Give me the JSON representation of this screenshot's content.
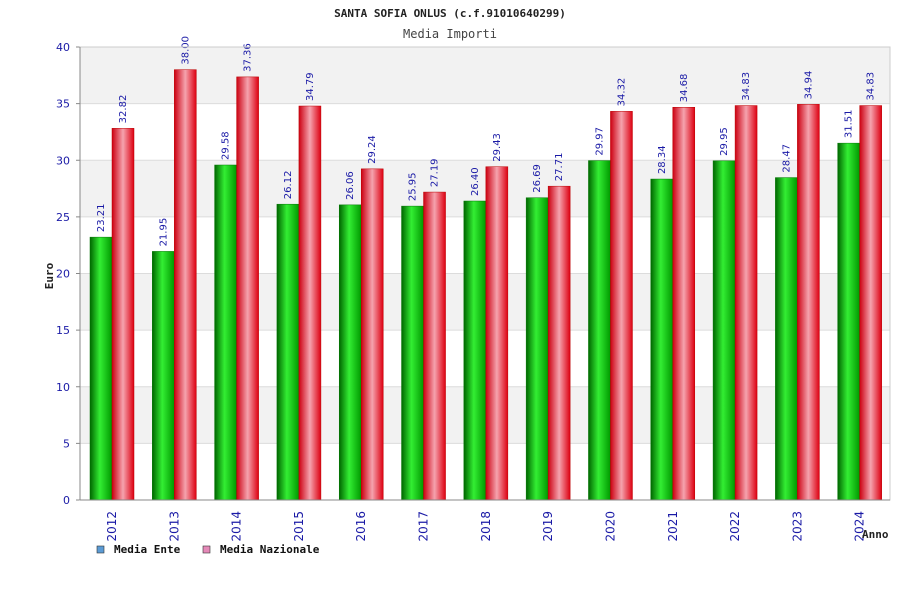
{
  "chart_data": {
    "type": "bar",
    "title": "SANTA SOFIA ONLUS (c.f.91010640299)",
    "subtitle": "Media Importi",
    "xlabel": "Anno",
    "ylabel": "Euro",
    "ylim": [
      0,
      40
    ],
    "yticks": [
      "0",
      "5",
      "10",
      "15",
      "20",
      "25",
      "30",
      "35",
      "40"
    ],
    "categories": [
      "2012",
      "2013",
      "2014",
      "2015",
      "2016",
      "2017",
      "2018",
      "2019",
      "2020",
      "2021",
      "2022",
      "2023",
      "2024"
    ],
    "series": [
      {
        "name": "Media Ente",
        "color": "#00bb00",
        "legend_color": "#5b9bd5",
        "values": [
          23.21,
          21.95,
          29.58,
          26.12,
          26.06,
          25.95,
          26.4,
          26.69,
          29.97,
          28.34,
          29.95,
          28.47,
          31.51
        ],
        "labels": [
          "23.21",
          "21.95",
          "29.58",
          "26.12",
          "26.06",
          "25.95",
          "26.40",
          "26.69",
          "29.97",
          "28.34",
          "29.95",
          "28.47",
          "31.51"
        ]
      },
      {
        "name": "Media Nazionale",
        "color": "#ee1122",
        "legend_color": "#e589b8",
        "values": [
          32.82,
          38.0,
          37.36,
          34.79,
          29.24,
          27.19,
          29.43,
          27.71,
          34.32,
          34.68,
          34.83,
          34.94,
          34.83
        ],
        "labels": [
          "32.82",
          "38.00",
          "37.36",
          "34.79",
          "29.24",
          "27.19",
          "29.43",
          "27.71",
          "34.32",
          "34.68",
          "34.83",
          "34.94",
          "34.83"
        ]
      }
    ],
    "grid": true,
    "legend_position": "bottom-left"
  }
}
